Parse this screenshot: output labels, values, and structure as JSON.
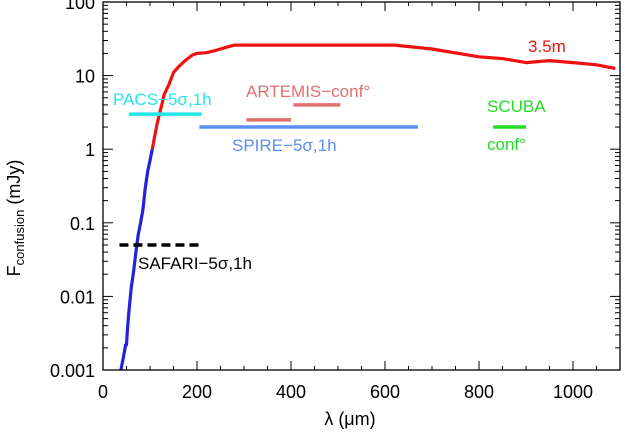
{
  "chart_data": {
    "type": "line",
    "xlabel": "λ (μm)",
    "ylabel_main": "F",
    "ylabel_sub": "confusion",
    "ylabel_unit": " (mJy)",
    "xlim": [
      0,
      1100
    ],
    "ylim": [
      0.001,
      100
    ],
    "yscale": "log",
    "x_ticks": [
      0,
      200,
      400,
      600,
      800,
      1000
    ],
    "x_tick_labels": [
      "0",
      "200",
      "400",
      "600",
      "800",
      "1000"
    ],
    "y_ticks": [
      0.001,
      0.01,
      0.1,
      1,
      10,
      100
    ],
    "y_tick_labels": [
      "0.001",
      "0.01",
      "0.1",
      "1",
      "10",
      "100"
    ],
    "grid": false,
    "series": [
      {
        "name": "3.5m",
        "color": "#2222dd",
        "points": [
          [
            38,
            0.001
          ],
          [
            45,
            0.0017
          ],
          [
            48,
            0.0022
          ],
          [
            50,
            0.0022
          ],
          [
            52,
            0.0035
          ],
          [
            55,
            0.006
          ],
          [
            60,
            0.013
          ],
          [
            65,
            0.022
          ],
          [
            70,
            0.04
          ],
          [
            75,
            0.07
          ],
          [
            80,
            0.1
          ],
          [
            85,
            0.15
          ],
          [
            90,
            0.3
          ],
          [
            95,
            0.5
          ],
          [
            100,
            0.7
          ],
          [
            105,
            1.0
          ]
        ]
      },
      {
        "name": "3.5m",
        "color": "#ee1111",
        "points": [
          [
            105,
            1.0
          ],
          [
            110,
            1.5
          ],
          [
            115,
            2.2
          ],
          [
            120,
            3.0
          ],
          [
            125,
            4.0
          ],
          [
            130,
            5.5
          ],
          [
            140,
            7.5
          ],
          [
            150,
            11
          ],
          [
            160,
            13
          ],
          [
            170,
            15
          ],
          [
            180,
            17
          ],
          [
            190,
            19
          ],
          [
            200,
            20
          ],
          [
            220,
            20.5
          ],
          [
            240,
            22
          ],
          [
            260,
            24
          ],
          [
            280,
            26
          ],
          [
            300,
            26
          ],
          [
            400,
            26
          ],
          [
            500,
            26
          ],
          [
            600,
            26
          ],
          [
            620,
            26
          ],
          [
            700,
            23
          ],
          [
            800,
            18
          ],
          [
            850,
            17
          ],
          [
            900,
            15
          ],
          [
            950,
            16
          ],
          [
            1000,
            15
          ],
          [
            1050,
            14
          ],
          [
            1090,
            12.5
          ]
        ]
      }
    ],
    "segments": [
      {
        "label": "PACS−5σ,1h",
        "color": "#22e6e6",
        "x": [
          55,
          210
        ],
        "y": 3.0
      },
      {
        "label": "ARTEMIS−conf°",
        "color": "#e07070",
        "x": [
          305,
          400
        ],
        "y": 2.5
      },
      {
        "label": "ARTEMIS−conf°",
        "color": "#e07070",
        "x": [
          405,
          505
        ],
        "y": 4.0
      },
      {
        "label": "SPIRE−5σ,1h",
        "color": "#5b8ff0",
        "x": [
          205,
          670
        ],
        "y": 2.0
      },
      {
        "label": "SCUBA conf°",
        "color": "#22dd22",
        "x": [
          830,
          900
        ],
        "y": 2.0
      },
      {
        "label": "SAFARI−5σ,1h",
        "color": "#000000",
        "x": [
          35,
          210
        ],
        "y": 0.05,
        "dashed": true
      }
    ],
    "annotations": [
      {
        "text": "3.5m",
        "color": "#ee1111"
      },
      {
        "text": "PACS−5σ,1h",
        "color": "#22e6e6"
      },
      {
        "text": "ARTEMIS−conf°",
        "color": "#e07070"
      },
      {
        "text": "SPIRE−5σ,1h",
        "color": "#5b8ff0"
      },
      {
        "text": "SCUBA",
        "color": "#22dd22"
      },
      {
        "text": "conf°",
        "color": "#22dd22"
      },
      {
        "text": "SAFARI−5σ,1h",
        "color": "#000000"
      }
    ]
  }
}
